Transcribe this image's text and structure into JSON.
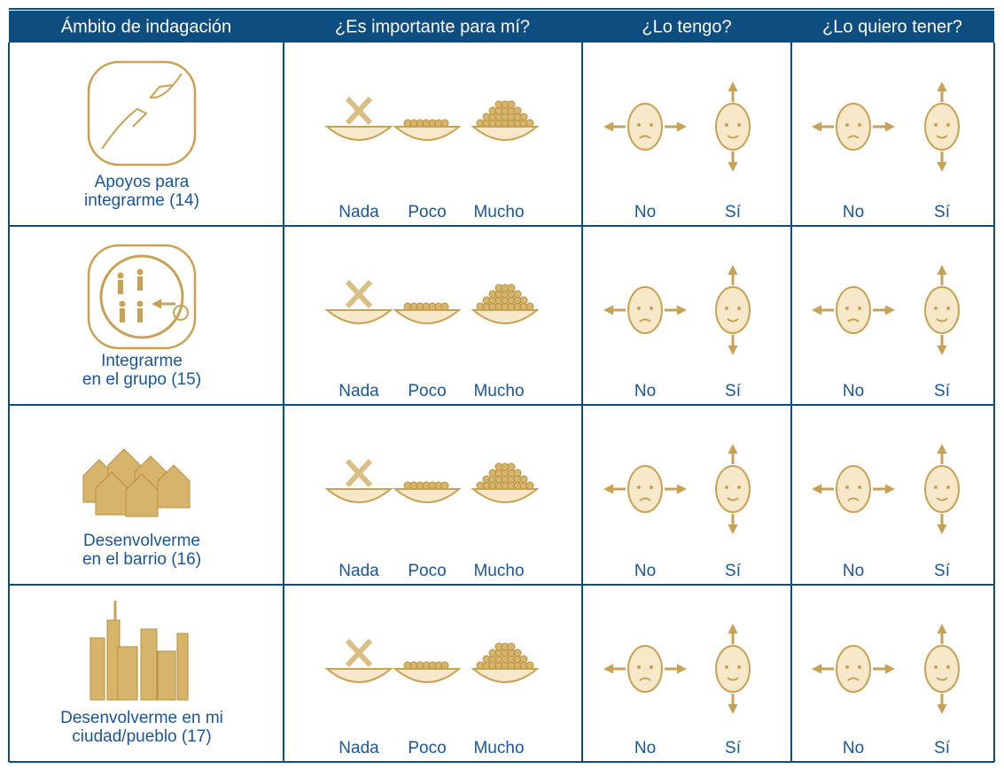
{
  "table": {
    "header": [
      "Ámbito de indagación",
      "¿Es importante para mí?",
      "¿Lo tengo?",
      "¿Lo quiero tener?"
    ],
    "rows": [
      {
        "label": [
          "Apoyos para",
          "integrarme (14)"
        ],
        "importance": [
          "Nada",
          "Poco",
          "Mucho"
        ],
        "have": [
          "No",
          "Sí"
        ],
        "want": [
          "No",
          "Sí"
        ]
      },
      {
        "label": [
          "Integrarme",
          "en el grupo (15)"
        ],
        "importance": [
          "Nada",
          "Poco",
          "Mucho"
        ],
        "have": [
          "No",
          "Sí"
        ],
        "want": [
          "No",
          "Sí"
        ]
      },
      {
        "label": [
          "Desenvolverme",
          "en el barrio (16)"
        ],
        "importance": [
          "Nada",
          "Poco",
          "Mucho"
        ],
        "have": [
          "No",
          "Sí"
        ],
        "want": [
          "No",
          "Sí"
        ]
      },
      {
        "label": [
          "Desenvolverme en mi",
          "ciudad/pueblo (17)"
        ],
        "importance": [
          "Nada",
          "Poco",
          "Mucho"
        ],
        "have": [
          "No",
          "Sí"
        ],
        "want": [
          "No",
          "Sí"
        ]
      }
    ]
  }
}
